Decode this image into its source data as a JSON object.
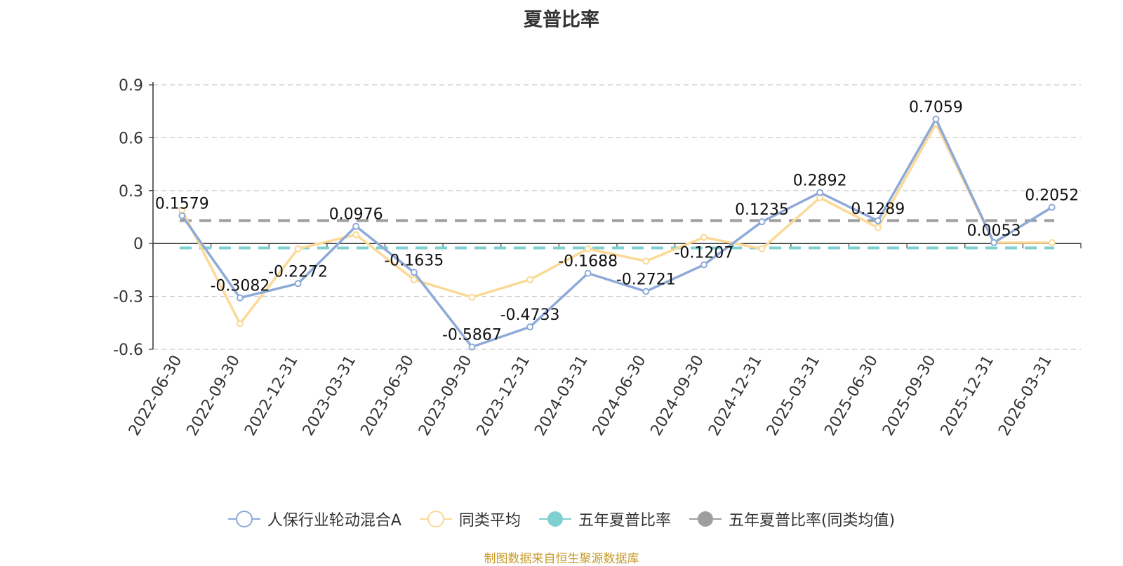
{
  "chart_data": {
    "type": "line",
    "title": "夏普比率",
    "categories": [
      "2022-06-30",
      "2022-09-30",
      "2022-12-31",
      "2023-03-31",
      "2023-06-30",
      "2023-09-30",
      "2023-12-31",
      "2024-03-31",
      "2024-06-30",
      "2024-09-30",
      "2024-12-31",
      "2025-03-31",
      "2025-06-30",
      "2025-09-30",
      "2025-12-31",
      "2026-03-31"
    ],
    "ylim": [
      -0.6,
      0.9
    ],
    "yticks": [
      "0.9",
      "0.6",
      "0.3",
      "0",
      "-0.3",
      "-0.6"
    ],
    "ytick_values": [
      0.9,
      0.6,
      0.3,
      0,
      -0.3,
      -0.6
    ],
    "grid": true,
    "legend_position": "bottom-center",
    "series": [
      {
        "name": "人保行业轮动混合A",
        "color": "#8eaad8",
        "values": [
          0.1579,
          -0.3082,
          -0.2272,
          0.0976,
          -0.1635,
          -0.5867,
          -0.4733,
          -0.1688,
          -0.2721,
          -0.1207,
          0.1235,
          0.2892,
          0.1289,
          0.7059,
          0.0053,
          0.2052
        ],
        "labels": [
          "0.1579",
          "-0.3082",
          "-0.2272",
          "0.0976",
          "-0.1635",
          "-0.5867",
          "-0.4733",
          "-0.1688",
          "-0.2721",
          "-0.1207",
          "0.1235",
          "0.2892",
          "0.1289",
          "0.7059",
          "0.0053",
          "0.2052"
        ]
      },
      {
        "name": "同类平均",
        "color": "#fbd996",
        "values": [
          0.19,
          -0.455,
          -0.03,
          0.05,
          -0.205,
          -0.305,
          -0.205,
          -0.03,
          -0.1,
          0.035,
          -0.03,
          0.26,
          0.09,
          0.68,
          0.005,
          0.005
        ]
      }
    ],
    "reference_lines": [
      {
        "name": "五年夏普比率",
        "color": "#7fd0d1",
        "value": -0.025
      },
      {
        "name": "五年夏普比率(同类均值)",
        "color": "#9e9e9e",
        "value": 0.13
      }
    ]
  },
  "source": "制图数据来自恒生聚源数据库"
}
